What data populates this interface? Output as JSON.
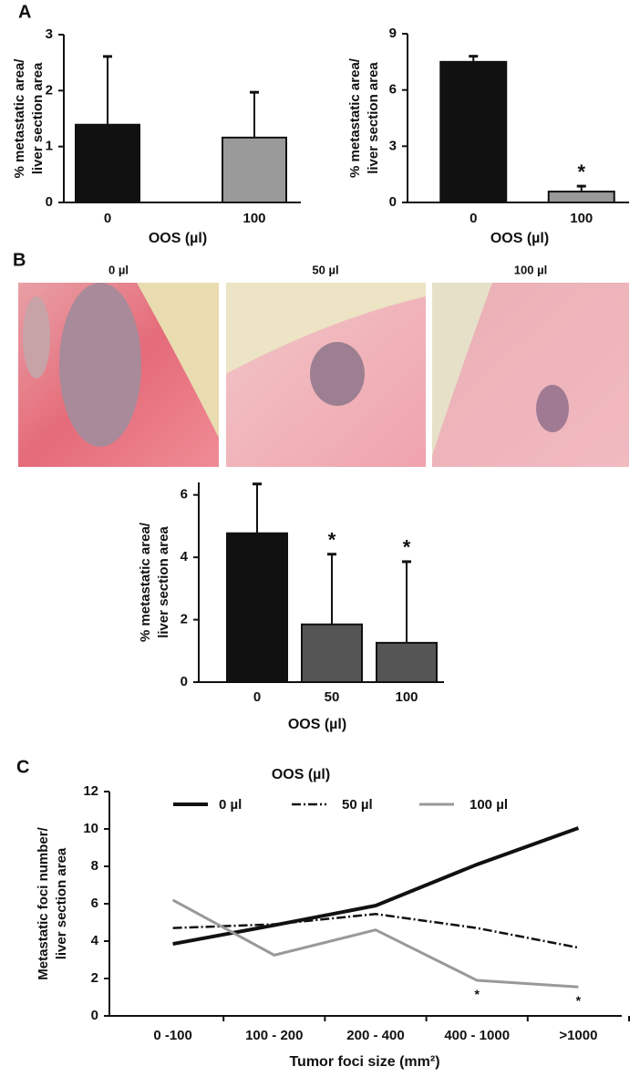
{
  "panels": [
    "A",
    "B",
    "C"
  ],
  "images": [
    {
      "title": "0 µl"
    },
    {
      "title": "50 µl"
    },
    {
      "title": "100 µl"
    }
  ],
  "chart_data": [
    {
      "type": "bar",
      "categories": [
        "0",
        "100"
      ],
      "values": [
        1.39,
        1.16
      ],
      "errors": [
        1.22,
        0.81
      ],
      "colors": [
        "#111111",
        "#9a9a9a"
      ],
      "ylim": [
        0,
        3
      ],
      "yticks": [
        0,
        1,
        2,
        3
      ],
      "ylabel": [
        "% metastatic area/",
        "liver section area"
      ],
      "xlabel": "OOS   (µl)"
    },
    {
      "type": "bar",
      "categories": [
        "0",
        "100"
      ],
      "values": [
        7.5,
        0.58
      ],
      "errors": [
        0.3,
        0.29
      ],
      "colors": [
        "#111111",
        "#9a9a9a"
      ],
      "ylim": [
        0,
        9
      ],
      "yticks": [
        0,
        3,
        6,
        9
      ],
      "ylabel": [
        "% metastatic area/",
        "liver section area"
      ],
      "xlabel": "OOS   (µl)",
      "annotations": [
        {
          "category": "100",
          "text": "*"
        }
      ]
    },
    {
      "type": "bar",
      "categories": [
        "0",
        "50",
        "100"
      ],
      "values": [
        4.77,
        1.85,
        1.26
      ],
      "errors": [
        1.58,
        2.25,
        2.6
      ],
      "colors": [
        "#111111",
        "#555555",
        "#555555"
      ],
      "ylim": [
        0,
        6.4
      ],
      "yticks": [
        0,
        2,
        4,
        6
      ],
      "ylabel": [
        "% metastatic area/",
        "liver section area"
      ],
      "xlabel": "OOS (µl)",
      "annotations": [
        {
          "category": "50",
          "text": "*"
        },
        {
          "category": "100",
          "text": "*"
        }
      ]
    },
    {
      "type": "line",
      "categories": [
        "0 -100",
        "100 - 200",
        "200 - 400",
        "400 - 1000",
        ">1000"
      ],
      "series": [
        {
          "name": "0 µl",
          "color": "#111111",
          "linestyle": "solid",
          "width": 4,
          "values": [
            3.85,
            4.85,
            5.9,
            8.1,
            10.05
          ]
        },
        {
          "name": "50 µl",
          "color": "#111111",
          "linestyle": "dashdot",
          "width": 2.5,
          "values": [
            4.7,
            4.9,
            5.45,
            4.7,
            3.65
          ]
        },
        {
          "name": "100 µl",
          "color": "#999999",
          "linestyle": "solid",
          "width": 3,
          "values": [
            6.2,
            3.25,
            4.6,
            1.9,
            1.55
          ]
        }
      ],
      "legend_title": "OOS   (µl)",
      "ylim": [
        0,
        12
      ],
      "yticks": [
        0,
        2,
        4,
        6,
        8,
        10,
        12
      ],
      "ylabel": [
        "Metastatic foci number/",
        "liver section area"
      ],
      "xlabel": "Tumor foci size (mm²)",
      "annotations": [
        {
          "category": "400 - 1000",
          "text": "*"
        },
        {
          "category": ">1000",
          "text": "*"
        }
      ]
    }
  ]
}
